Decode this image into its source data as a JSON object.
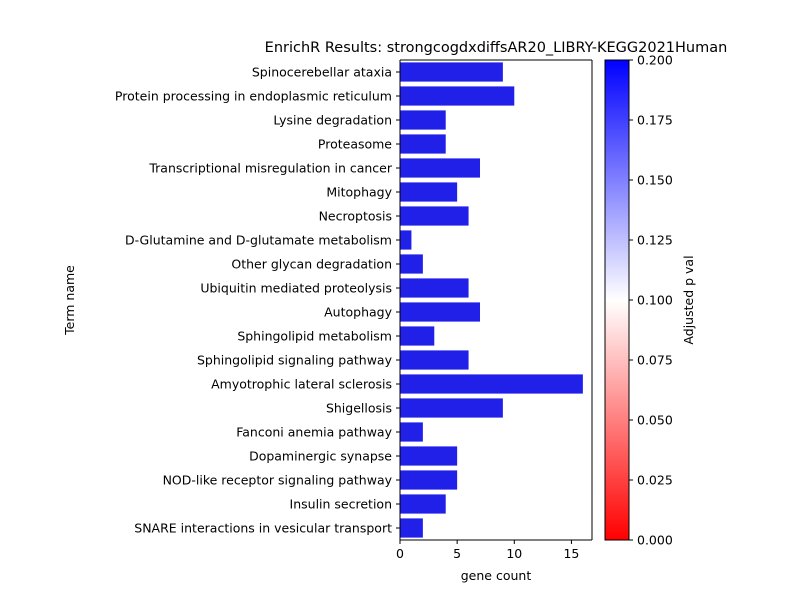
{
  "chart_data": {
    "type": "bar",
    "orientation": "horizontal",
    "title": "EnrichR Results: strongcogdxdiffsAR20_LIBRY-KEGG2021Human",
    "xlabel": "gene count",
    "ylabel": "Term name",
    "xlim": [
      0,
      16.8
    ],
    "x_ticks": [
      0,
      5,
      10,
      15
    ],
    "categories": [
      "Spinocerebellar ataxia",
      "Protein processing in endoplasmic reticulum",
      "Lysine degradation",
      "Proteasome",
      "Transcriptional misregulation in cancer",
      "Mitophagy",
      "Necroptosis",
      "D-Glutamine and D-glutamate metabolism",
      "Other glycan degradation",
      "Ubiquitin mediated proteolysis",
      "Autophagy",
      "Sphingolipid metabolism",
      "Sphingolipid signaling pathway",
      "Amyotrophic lateral sclerosis",
      "Shigellosis",
      "Fanconi anemia pathway",
      "Dopaminergic synapse",
      "NOD-like receptor signaling pathway",
      "Insulin secretion",
      "SNARE interactions in vesicular transport"
    ],
    "values": [
      9,
      10,
      4,
      4,
      7,
      5,
      6,
      1,
      2,
      6,
      7,
      3,
      6,
      16,
      9,
      2,
      5,
      5,
      4,
      2
    ],
    "bar_color": "#2020e8",
    "colorbar": {
      "label": "Adjusted p val",
      "range": [
        0.0,
        0.2
      ],
      "ticks": [
        "0.000",
        "0.025",
        "0.050",
        "0.075",
        "0.100",
        "0.125",
        "0.150",
        "0.175",
        "0.200"
      ],
      "colors": [
        "#ff0000",
        "#ffffff",
        "#0000ff"
      ]
    },
    "grid": false
  }
}
